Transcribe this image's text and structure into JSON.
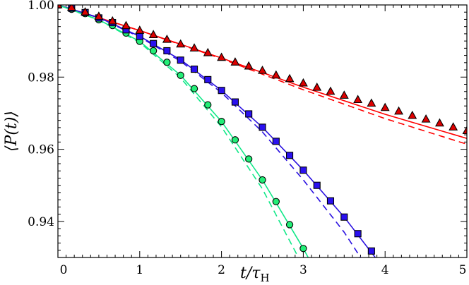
{
  "chart_data": {
    "type": "line",
    "title": "",
    "xlabel": "t/τ",
    "xlabel_sub": "H",
    "ylabel": "⟨P(t)⟩",
    "xlim": [
      0,
      5
    ],
    "ylim": [
      0.93,
      1.0
    ],
    "xticks": [
      0,
      1,
      2,
      3,
      4,
      5
    ],
    "xtick_labels": [
      "0",
      "1",
      "2",
      "3",
      "4",
      "5"
    ],
    "yticks": [
      0.94,
      0.96,
      0.98,
      1.0
    ],
    "ytick_labels": [
      "0.94",
      "0.96",
      "0.98",
      "1.00"
    ],
    "x_minor_step": 0.1,
    "y_minor_step": 0.002,
    "grid": false,
    "legend": "none",
    "series": [
      {
        "marker": "triangle",
        "color": "#ff0000",
        "marker_fill": "#dd0000",
        "x": [
          0,
          0.167,
          0.333,
          0.5,
          0.667,
          0.833,
          1.0,
          1.167,
          1.333,
          1.5,
          1.667,
          1.833,
          2.0,
          2.167,
          2.333,
          2.5,
          2.667,
          2.833,
          3.0,
          3.167,
          3.333,
          3.5,
          3.667,
          3.833,
          4.0,
          4.167,
          4.333,
          4.5,
          4.667,
          4.833,
          5.0
        ],
        "y": [
          1.0,
          0.9993,
          0.998,
          0.9968,
          0.9955,
          0.9942,
          0.9929,
          0.9917,
          0.9904,
          0.9891,
          0.988,
          0.9867,
          0.9854,
          0.9841,
          0.983,
          0.9818,
          0.9805,
          0.9795,
          0.9783,
          0.9771,
          0.976,
          0.9749,
          0.9737,
          0.9727,
          0.9715,
          0.9705,
          0.9693,
          0.9683,
          0.9672,
          0.9661,
          0.9651
        ],
        "solid": {
          "x": [
            0,
            1,
            2,
            3,
            4,
            5
          ],
          "y": [
            1.0,
            0.9929,
            0.9853,
            0.9772,
            0.9697,
            0.963
          ]
        },
        "dashed": {
          "x": [
            0,
            1,
            2,
            3,
            4,
            5
          ],
          "y": [
            1.0,
            0.9929,
            0.9851,
            0.9765,
            0.9685,
            0.9614
          ]
        }
      },
      {
        "marker": "square",
        "color": "#2a10e0",
        "marker_fill": "#2a10f0",
        "x": [
          0,
          0.167,
          0.333,
          0.5,
          0.667,
          0.833,
          1.0,
          1.167,
          1.333,
          1.5,
          1.667,
          1.833,
          2.0,
          2.167,
          2.333,
          2.5,
          2.667,
          2.833,
          3.0,
          3.167,
          3.333,
          3.5,
          3.667,
          3.833
        ],
        "y": [
          1.0,
          0.9991,
          0.9979,
          0.9964,
          0.9951,
          0.9931,
          0.9913,
          0.9893,
          0.9873,
          0.9847,
          0.9822,
          0.9793,
          0.9763,
          0.9731,
          0.9698,
          0.9661,
          0.9622,
          0.9583,
          0.9542,
          0.95,
          0.9457,
          0.9412,
          0.9366,
          0.9318
        ],
        "solid": {
          "x": [
            0,
            0.5,
            1,
            1.5,
            2,
            2.5,
            3,
            3.5,
            3.88
          ],
          "y": [
            1.0,
            0.9965,
            0.9913,
            0.9848,
            0.9763,
            0.9661,
            0.9542,
            0.9412,
            0.93
          ]
        },
        "dashed": {
          "x": [
            0,
            0.5,
            1,
            1.5,
            2,
            2.5,
            3,
            3.5,
            3.7
          ],
          "y": [
            1.0,
            0.9964,
            0.9911,
            0.9844,
            0.9757,
            0.9648,
            0.9515,
            0.937,
            0.93
          ]
        }
      },
      {
        "marker": "circle",
        "color": "#11e888",
        "marker_fill": "#22ee77",
        "x": [
          0,
          0.167,
          0.333,
          0.5,
          0.667,
          0.833,
          1.0,
          1.167,
          1.333,
          1.5,
          1.667,
          1.833,
          2.0,
          2.167,
          2.333,
          2.5,
          2.667,
          2.833,
          3.0
        ],
        "y": [
          1.0,
          0.9988,
          0.9976,
          0.9959,
          0.9943,
          0.9922,
          0.9899,
          0.9873,
          0.9841,
          0.9805,
          0.9768,
          0.9723,
          0.9677,
          0.9626,
          0.9573,
          0.9515,
          0.9455,
          0.9391,
          0.9325
        ],
        "solid": {
          "x": [
            0,
            0.5,
            1,
            1.5,
            2,
            2.5,
            3,
            3.06
          ],
          "y": [
            1.0,
            0.9959,
            0.9899,
            0.9805,
            0.9677,
            0.9515,
            0.9325,
            0.93
          ]
        },
        "dashed": {
          "x": [
            0,
            0.5,
            1,
            1.5,
            2,
            2.5,
            2.94
          ],
          "y": [
            1.0,
            0.9958,
            0.9896,
            0.9798,
            0.9662,
            0.949,
            0.93
          ]
        }
      }
    ]
  }
}
